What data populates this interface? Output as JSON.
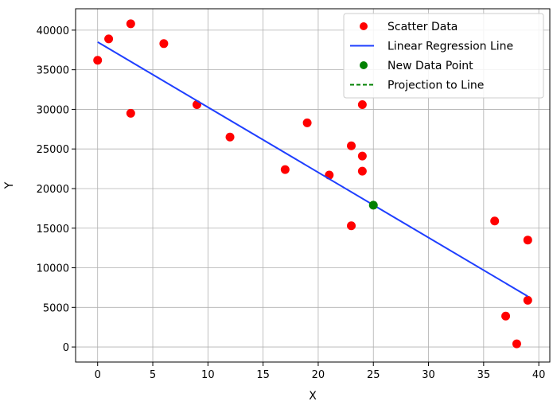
{
  "chart_data": {
    "type": "scatter",
    "title": "",
    "xlabel": "X",
    "ylabel": "Y",
    "xlim": [
      -2,
      41
    ],
    "ylim": [
      -1900,
      42700
    ],
    "xticks": [
      0,
      5,
      10,
      15,
      20,
      25,
      30,
      35,
      40
    ],
    "yticks": [
      0,
      5000,
      10000,
      15000,
      20000,
      25000,
      30000,
      35000,
      40000
    ],
    "grid": true,
    "legend_position": "top-right",
    "series": [
      {
        "name": "Scatter Data",
        "kind": "scatter",
        "color": "#ff0000",
        "points": [
          [
            0,
            36200
          ],
          [
            1,
            38900
          ],
          [
            3,
            40800
          ],
          [
            3,
            29500
          ],
          [
            6,
            38300
          ],
          [
            9,
            30600
          ],
          [
            12,
            26500
          ],
          [
            17,
            22400
          ],
          [
            19,
            28300
          ],
          [
            21,
            21700
          ],
          [
            23,
            25400
          ],
          [
            23,
            15300
          ],
          [
            24,
            30600
          ],
          [
            24,
            24100
          ],
          [
            24,
            22200
          ],
          [
            36,
            15900
          ],
          [
            37,
            3900
          ],
          [
            38,
            400
          ],
          [
            39,
            13500
          ],
          [
            39,
            5900
          ]
        ]
      },
      {
        "name": "Linear Regression Line",
        "kind": "line",
        "color": "#1f3fff",
        "points": [
          [
            0,
            38500
          ],
          [
            39,
            6400
          ]
        ]
      },
      {
        "name": "New Data Point",
        "kind": "scatter",
        "color": "#008000",
        "points": [
          [
            25,
            17900
          ]
        ]
      },
      {
        "name": "Projection to Line",
        "kind": "dashed-line",
        "color": "#008000",
        "points": [
          [
            25,
            17900
          ],
          [
            25,
            17900
          ]
        ]
      }
    ]
  }
}
